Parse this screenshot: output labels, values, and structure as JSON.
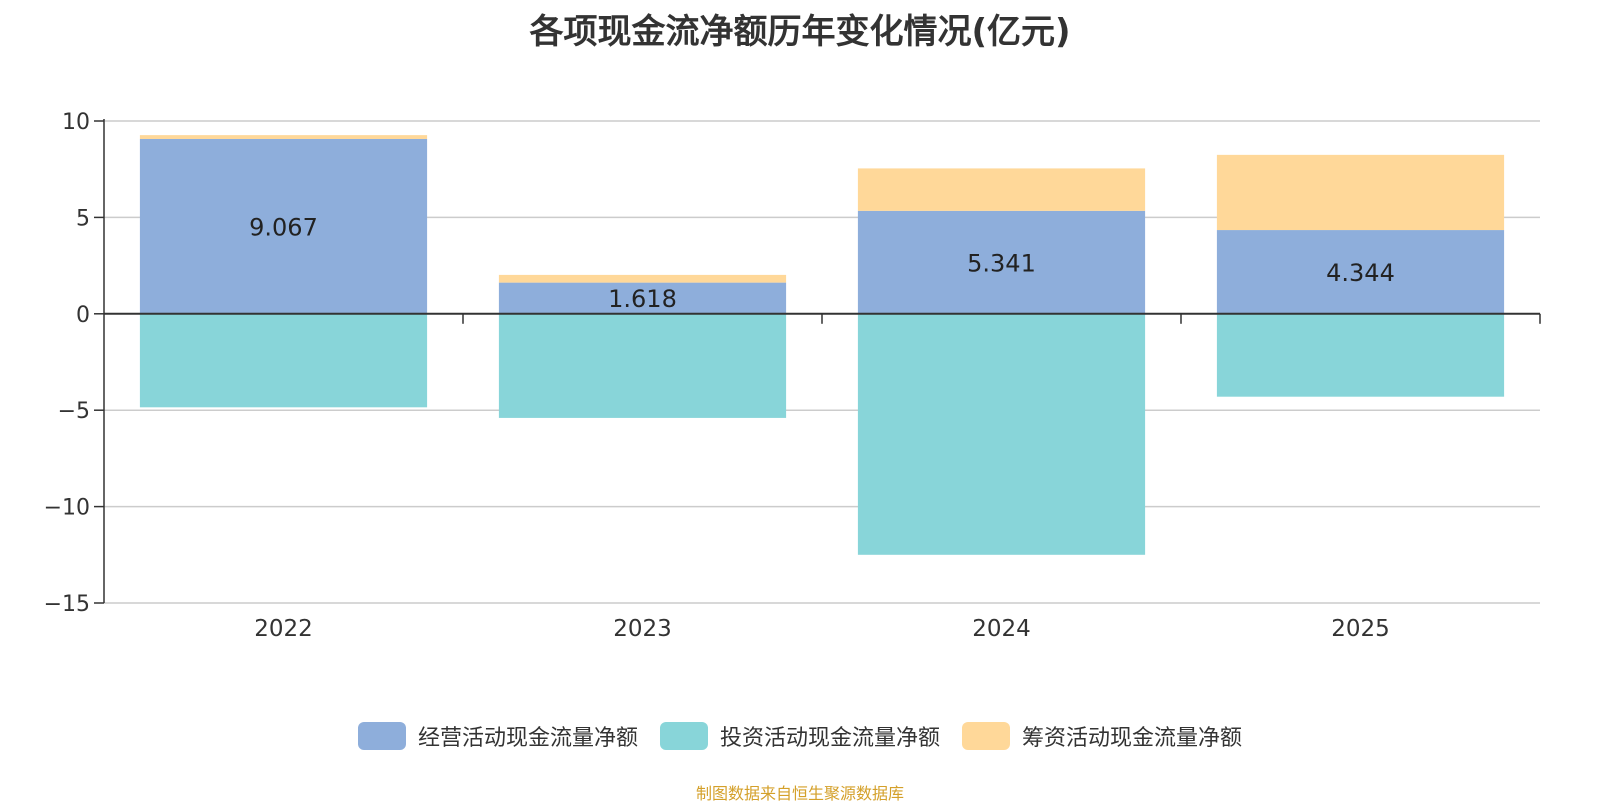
{
  "chart_data": {
    "type": "bar",
    "stacked": true,
    "title": "各项现金流净额历年变化情况(亿元)",
    "categories": [
      "2022",
      "2023",
      "2024",
      "2025"
    ],
    "ylim": [
      -15,
      10
    ],
    "yticks": [
      10,
      5,
      0,
      -5,
      -10,
      -15
    ],
    "ytick_labels": [
      "10",
      "5",
      "0",
      "−5",
      "−10",
      "−15"
    ],
    "grid": true,
    "legend_position": "bottom",
    "series": [
      {
        "name": "经营活动现金流量净额",
        "color": "#8eaedb",
        "values": [
          9.067,
          1.618,
          5.341,
          4.344
        ],
        "data_labels": [
          "9.067",
          "1.618",
          "5.341",
          "4.344"
        ]
      },
      {
        "name": "投资活动现金流量净额",
        "color": "#88d5d9",
        "values": [
          -4.85,
          -5.4,
          -12.5,
          -4.3
        ]
      },
      {
        "name": "筹资活动现金流量净额",
        "color": "#ffd899",
        "values": [
          0.2,
          0.4,
          2.2,
          3.9
        ]
      }
    ]
  },
  "footer": {
    "source": "制图数据来自恒生聚源数据库"
  }
}
